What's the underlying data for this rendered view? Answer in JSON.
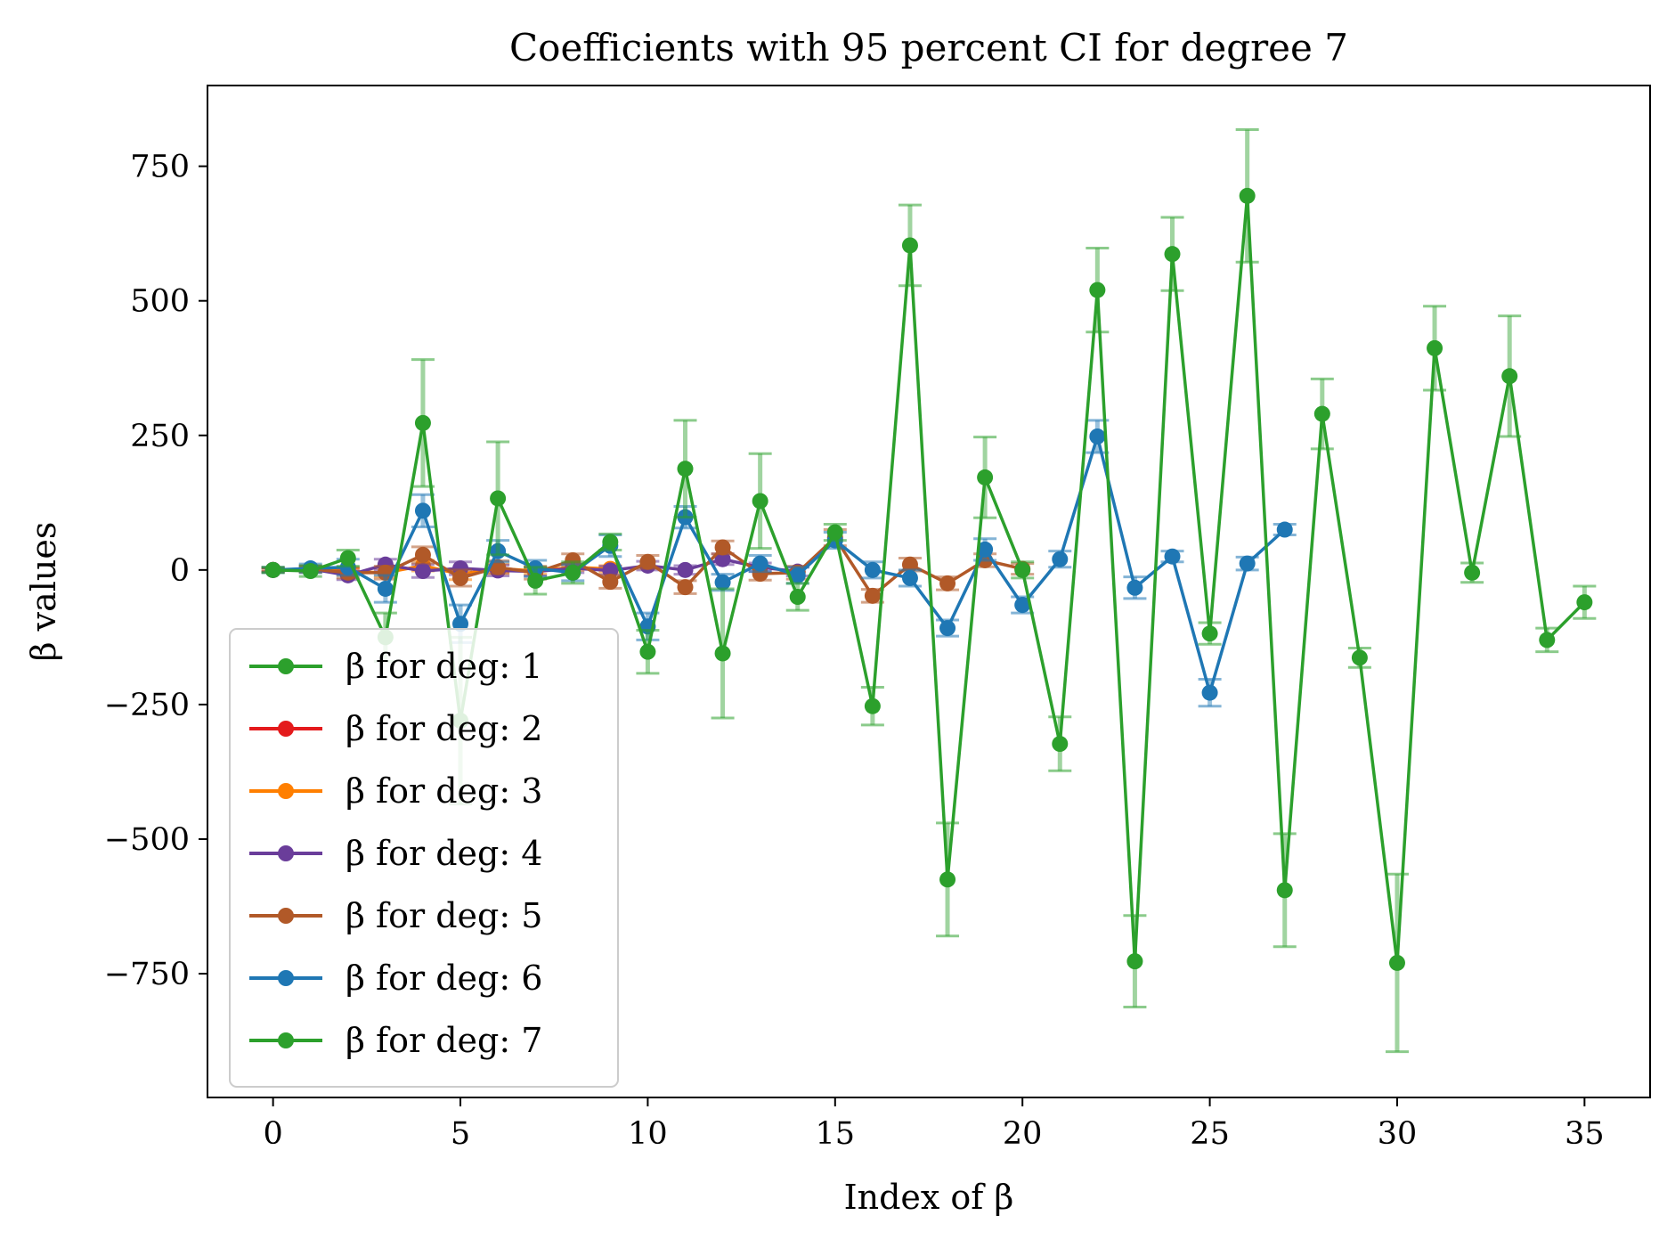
{
  "chart_data": {
    "type": "line",
    "title": "Coefficients with 95 percent CI for degree 7",
    "xlabel": "Index of β",
    "ylabel": "β values",
    "xlim": [
      -1.75,
      36.75
    ],
    "ylim": [
      -980,
      900
    ],
    "xticks": [
      0,
      5,
      10,
      15,
      20,
      25,
      30,
      35
    ],
    "xtick_labels": [
      "0",
      "5",
      "10",
      "15",
      "20",
      "25",
      "30",
      "35"
    ],
    "yticks": [
      750,
      500,
      250,
      0,
      -250,
      -500,
      -750
    ],
    "ytick_labels": [
      "750",
      "500",
      "250",
      "0",
      "−250",
      "−500",
      "−750"
    ],
    "grid": false,
    "legend_position": "lower-left",
    "series": [
      {
        "name": "β for deg: 1",
        "color": "#2ca02c",
        "x": [
          0,
          1
        ],
        "y": [
          0,
          -1
        ],
        "err": [
          3,
          3
        ]
      },
      {
        "name": "β for deg: 2",
        "color": "#e41a1c",
        "x": [
          0,
          1,
          2
        ],
        "y": [
          0,
          0,
          0
        ],
        "err": [
          3,
          3,
          3
        ]
      },
      {
        "name": "β for deg: 3",
        "color": "#ff7f00",
        "x": [
          0,
          1,
          2,
          3,
          4,
          5,
          6,
          7,
          8,
          9
        ],
        "y": [
          0,
          1,
          -3,
          -5,
          8,
          -8,
          3,
          -2,
          5,
          2
        ],
        "err": [
          4,
          5,
          6,
          8,
          10,
          10,
          8,
          6,
          6,
          6
        ]
      },
      {
        "name": "β for deg: 4",
        "color": "#6a3d9a",
        "x": [
          0,
          1,
          2,
          3,
          4,
          5,
          6,
          7,
          8,
          9,
          10,
          11,
          12,
          13,
          14
        ],
        "y": [
          0,
          2,
          -10,
          10,
          -2,
          3,
          -1,
          -3,
          3,
          -1,
          8,
          0,
          20,
          5,
          -3
        ],
        "err": [
          4,
          5,
          8,
          10,
          12,
          12,
          10,
          8,
          8,
          8,
          8,
          8,
          10,
          8,
          8
        ]
      },
      {
        "name": "β for deg: 5",
        "color": "#b15928",
        "x": [
          0,
          1,
          2,
          3,
          4,
          5,
          6,
          7,
          8,
          9,
          10,
          11,
          12,
          13,
          14,
          15,
          16,
          17,
          18,
          19,
          20
        ],
        "y": [
          0,
          2,
          -5,
          -5,
          28,
          -15,
          5,
          -5,
          18,
          -22,
          15,
          -32,
          42,
          -7,
          -5,
          60,
          -48,
          10,
          -25,
          18,
          2
        ],
        "err": [
          4,
          6,
          10,
          12,
          15,
          15,
          12,
          12,
          12,
          12,
          12,
          12,
          12,
          12,
          12,
          15,
          12,
          12,
          12,
          12,
          10
        ]
      },
      {
        "name": "β for deg: 6",
        "color": "#1f77b4",
        "x": [
          0,
          1,
          2,
          3,
          4,
          5,
          6,
          7,
          8,
          9,
          10,
          11,
          12,
          13,
          14,
          15,
          16,
          17,
          18,
          19,
          20,
          21,
          22,
          23,
          24,
          25,
          26,
          27
        ],
        "y": [
          0,
          3,
          5,
          -35,
          110,
          -100,
          35,
          3,
          -5,
          45,
          -105,
          98,
          -23,
          12,
          -10,
          55,
          0,
          -15,
          -108,
          38,
          -65,
          20,
          248,
          -33,
          25,
          -228,
          12,
          75
        ],
        "err": [
          5,
          8,
          15,
          25,
          30,
          35,
          20,
          15,
          15,
          20,
          25,
          20,
          15,
          15,
          15,
          15,
          15,
          15,
          15,
          20,
          15,
          15,
          30,
          20,
          10,
          25,
          12,
          10
        ]
      },
      {
        "name": "β for deg: 7",
        "color": "#2ca02c",
        "x": [
          0,
          1,
          2,
          3,
          4,
          5,
          6,
          7,
          8,
          9,
          10,
          11,
          12,
          13,
          14,
          15,
          16,
          17,
          18,
          19,
          20,
          21,
          22,
          23,
          24,
          25,
          26,
          27,
          28,
          29,
          30,
          31,
          32,
          33,
          34,
          35
        ],
        "y": [
          0,
          -2,
          22,
          -125,
          273,
          -280,
          133,
          -20,
          -5,
          52,
          -152,
          188,
          -155,
          128,
          -50,
          70,
          -253,
          603,
          -575,
          172,
          0,
          -323,
          520,
          -727,
          587,
          -118,
          695,
          -595,
          290,
          -163,
          -730,
          412,
          -5,
          360,
          -130,
          -60
        ],
        "err": [
          5,
          10,
          15,
          45,
          118,
          155,
          105,
          25,
          20,
          15,
          40,
          90,
          120,
          88,
          25,
          15,
          35,
          75,
          105,
          75,
          15,
          50,
          78,
          85,
          68,
          20,
          123,
          105,
          65,
          18,
          165,
          78,
          18,
          112,
          22,
          30
        ]
      }
    ]
  }
}
